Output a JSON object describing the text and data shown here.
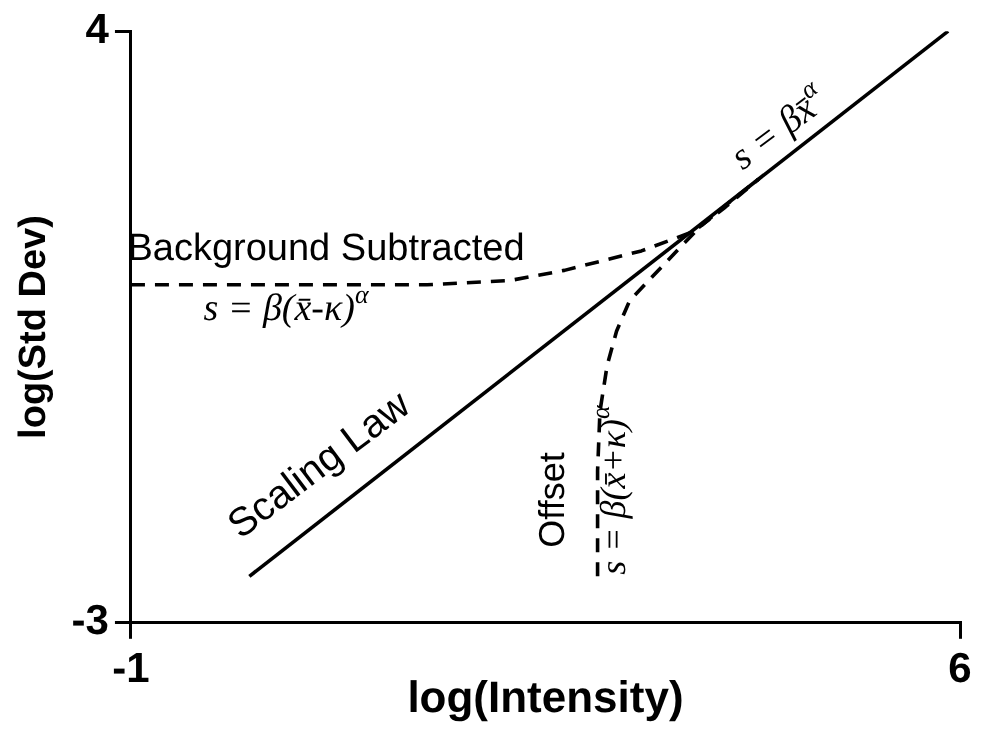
{
  "chart_data": {
    "type": "line",
    "xlabel": "log(Intensity)",
    "ylabel": "log(Std Dev)",
    "xlim": [
      -1,
      6
    ],
    "ylim": [
      -3,
      4
    ],
    "xticks": [
      -1,
      6
    ],
    "yticks": [
      -3,
      4
    ],
    "grid": false,
    "legend": false,
    "marker": "none",
    "series": [
      {
        "name": "Scaling Law",
        "color": "#000000",
        "line_style": "solid",
        "x": [
          0,
          5.9
        ],
        "values": [
          -2.45,
          4
        ]
      },
      {
        "name": "Background Subtracted",
        "color": "#000000",
        "line_style": "dashed",
        "x": [
          -1,
          1.5,
          2.2,
          2.66,
          3.31,
          3.75,
          4.02,
          4.3
        ],
        "values": [
          1,
          1,
          1.05,
          1.17,
          1.4,
          1.63,
          1.92,
          2.25
        ]
      },
      {
        "name": "Offset",
        "color": "#000000",
        "line_style": "dashed",
        "x": [
          2.94,
          2.94,
          2.96,
          3.02,
          3.1,
          3.21,
          3.48,
          3.8,
          4.02,
          4.3
        ],
        "values": [
          -2.45,
          -1.2,
          -0.5,
          0.04,
          0.45,
          0.81,
          1.21,
          1.68,
          1.94,
          2.25
        ]
      }
    ],
    "annotations": [
      "s = βx̄$^{α}$",
      "s = β(x̄-κ)$^{α}$",
      "s = β(x̄+κ)$^{α}$"
    ]
  }
}
